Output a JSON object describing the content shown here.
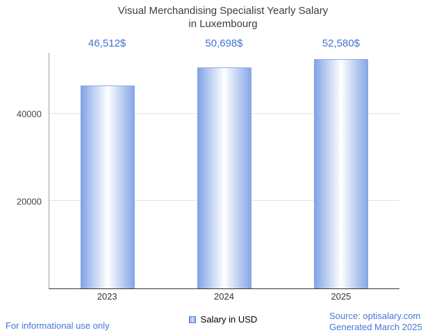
{
  "title": {
    "line1": "Visual Merchandising Specialist Yearly Salary",
    "line2": "in Luxembourg"
  },
  "chart_data": {
    "type": "bar",
    "title": "Visual Merchandising Specialist Yearly Salary in Luxembourg",
    "categories": [
      "2023",
      "2024",
      "2025"
    ],
    "values": [
      46512,
      50698,
      52580
    ],
    "value_labels": [
      "46,512$",
      "50,698$",
      "52,580$"
    ],
    "series_name": "Salary in USD",
    "xlabel": "",
    "ylabel": "",
    "ylim": [
      0,
      54000
    ],
    "yticks": [
      20000,
      40000
    ],
    "ytick_labels": [
      "20000",
      "40000"
    ],
    "grid": "horizontal",
    "legend_position": "bottom",
    "bar_color": "#86a5e6",
    "value_label_color": "#4473cc"
  },
  "legend": {
    "label": "Salary in USD"
  },
  "footer": {
    "disclaimer": "For informational use only",
    "source": "Source: optisalary.com",
    "generated": "Generated March 2025"
  },
  "colors": {
    "accent_blue": "#4477d9",
    "title_text": "#3d3d3d",
    "axis_text": "#444444",
    "gridline": "#e3e3e3"
  }
}
